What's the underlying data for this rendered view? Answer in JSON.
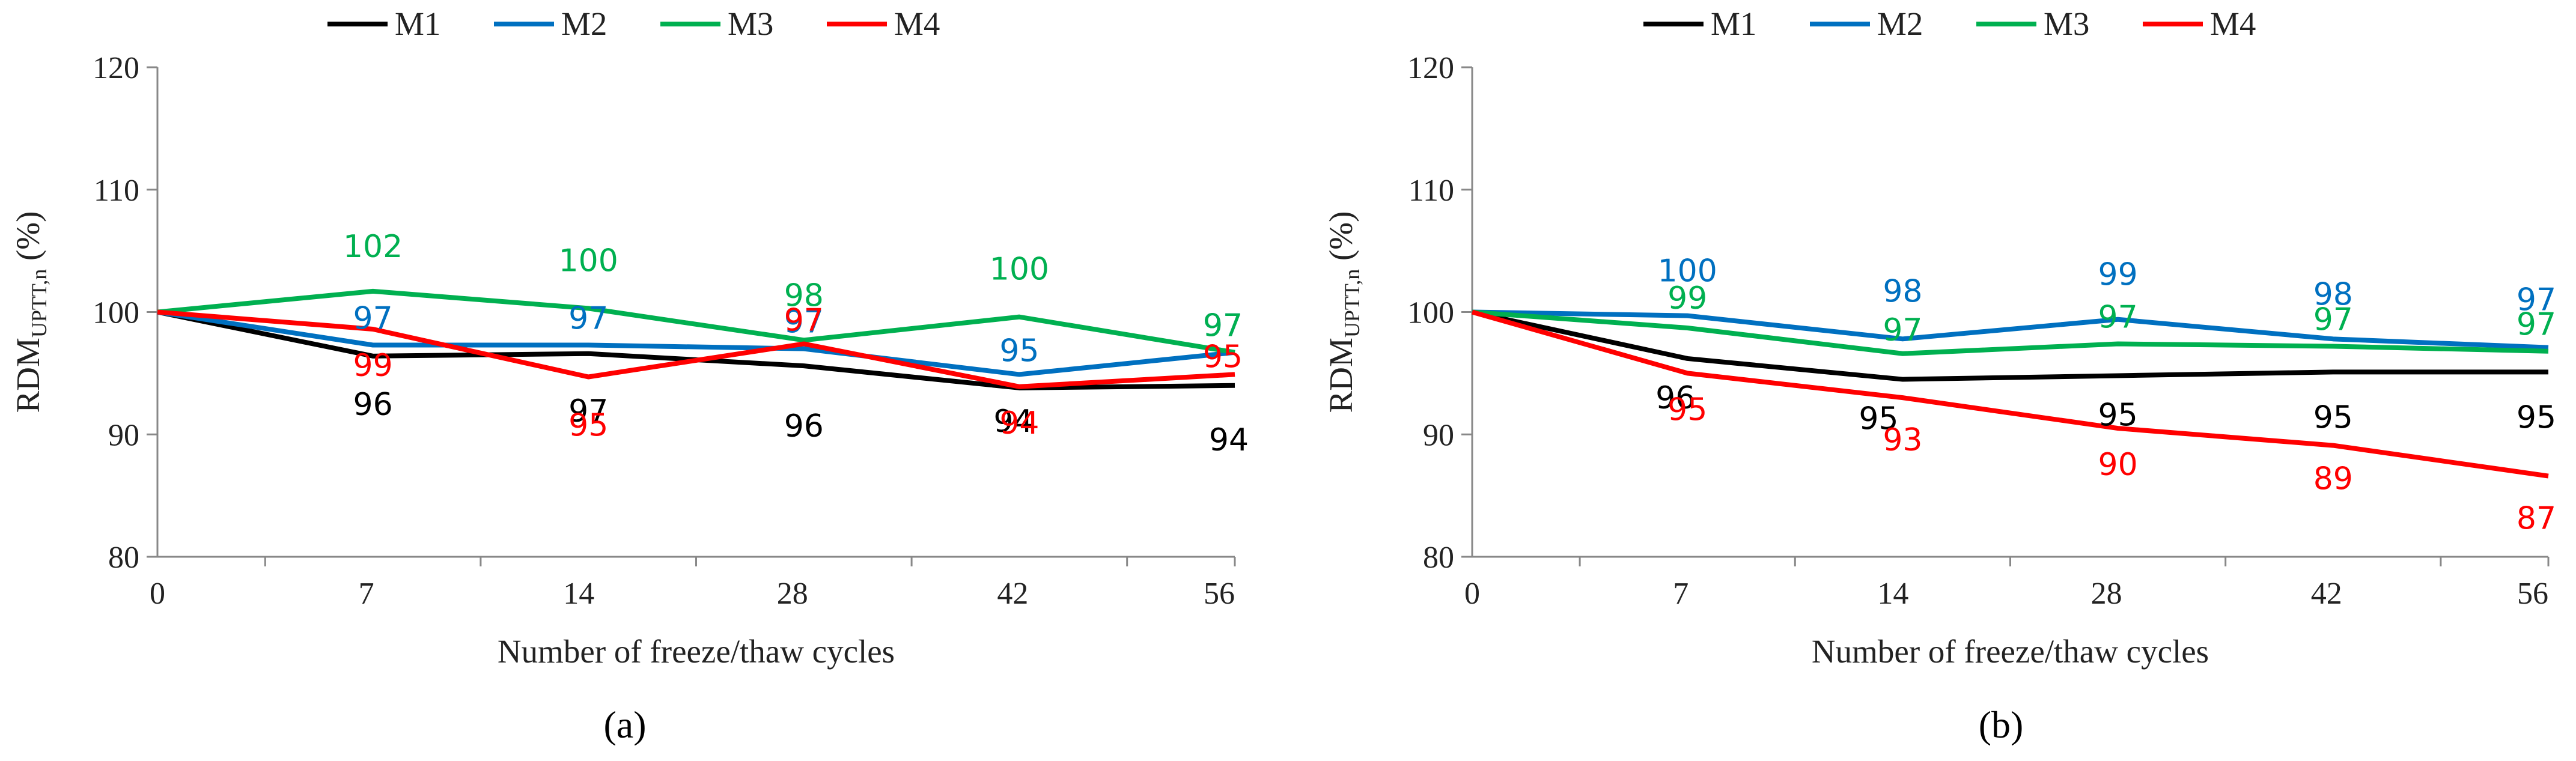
{
  "chart_data": [
    {
      "type": "line",
      "panel_label": "(a)",
      "categories": [
        "0",
        "7",
        "14",
        "28",
        "42",
        "56"
      ],
      "xlabel": "Number of freeze/thaw cycles",
      "ylabel_main": "RDM",
      "ylabel_sub": "UPTT,n",
      "ylabel_unit": " (%)",
      "ylim": [
        80,
        120
      ],
      "yticks": [
        80,
        90,
        100,
        110,
        120
      ],
      "grid": false,
      "legend_position": "top",
      "series": [
        {
          "name": "M1",
          "color": "#000000",
          "values": [
            100,
            96.4,
            96.6,
            95.6,
            93.8,
            94.0
          ],
          "labels": [
            "",
            "96",
            "97",
            "96",
            "94",
            "94"
          ]
        },
        {
          "name": "M2",
          "color": "#0070C0",
          "values": [
            100,
            97.3,
            97.3,
            97.0,
            94.9,
            96.7
          ],
          "labels": [
            "",
            "97",
            "97",
            "97",
            "95",
            "97"
          ]
        },
        {
          "name": "M3",
          "color": "#00B050",
          "values": [
            100,
            101.7,
            100.3,
            97.7,
            99.6,
            96.7
          ],
          "labels": [
            "",
            "102",
            "100",
            "98",
            "100",
            "97"
          ]
        },
        {
          "name": "M4",
          "color": "#FF0000",
          "values": [
            100,
            98.6,
            94.7,
            97.4,
            93.9,
            94.9
          ],
          "labels": [
            "",
            "99",
            "95",
            "97",
            "94",
            "95"
          ]
        }
      ]
    },
    {
      "type": "line",
      "panel_label": "(b)",
      "categories": [
        "0",
        "7",
        "14",
        "28",
        "42",
        "56"
      ],
      "xlabel": "Number of freeze/thaw cycles",
      "ylabel_main": "RDM",
      "ylabel_sub": "UPTT,n",
      "ylabel_unit": " (%)",
      "ylim": [
        80,
        120
      ],
      "yticks": [
        80,
        90,
        100,
        110,
        120
      ],
      "grid": false,
      "legend_position": "top",
      "series": [
        {
          "name": "M1",
          "color": "#000000",
          "values": [
            100,
            96.2,
            94.5,
            94.8,
            95.1,
            95.1
          ],
          "labels": [
            "",
            "96",
            "95",
            "95",
            "95",
            "95"
          ]
        },
        {
          "name": "M2",
          "color": "#0070C0",
          "values": [
            100,
            99.7,
            97.8,
            99.4,
            97.8,
            97.1
          ],
          "labels": [
            "",
            "100",
            "98",
            "99",
            "98",
            "97"
          ]
        },
        {
          "name": "M3",
          "color": "#00B050",
          "values": [
            100,
            98.7,
            96.6,
            97.4,
            97.2,
            96.8
          ],
          "labels": [
            "",
            "99",
            "97",
            "97",
            "97",
            "97"
          ]
        },
        {
          "name": "M4",
          "color": "#FF0000",
          "values": [
            100,
            95.0,
            93.0,
            90.5,
            89.1,
            86.6
          ],
          "labels": [
            "",
            "95",
            "93",
            "90",
            "89",
            "87"
          ]
        }
      ]
    }
  ]
}
